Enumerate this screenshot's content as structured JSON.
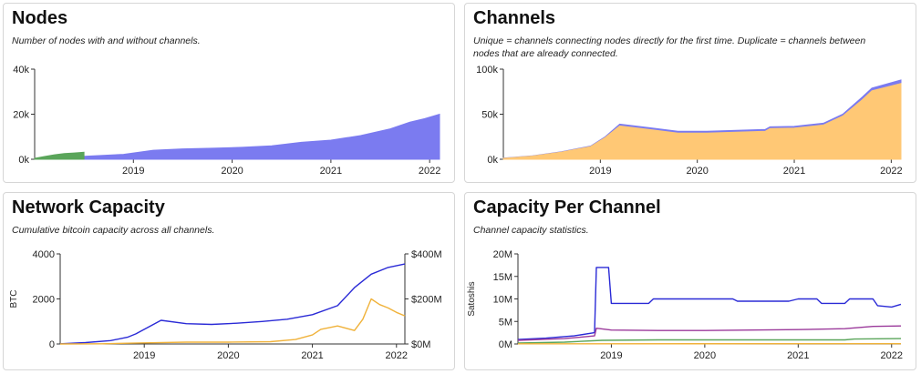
{
  "colors": {
    "blue": "#7b7bf0",
    "blue_line": "#2a2ad6",
    "green": "#5aa55a",
    "orange": "#ffc875",
    "orange_line": "#f0b23a",
    "purple": "#9b3a9b"
  },
  "panels": {
    "nodes": {
      "title": "Nodes",
      "subtitle": "Number of nodes with and without channels."
    },
    "channels": {
      "title": "Channels",
      "subtitle_line1": "Unique = channels connecting nodes directly for the first time. Duplicate = channels between",
      "subtitle_line2": "nodes that are already connected."
    },
    "capacity": {
      "title": "Network Capacity",
      "subtitle": "Cumulative bitcoin capacity across all channels."
    },
    "per_channel": {
      "title": "Capacity Per Channel",
      "subtitle": "Channel capacity statistics."
    }
  },
  "chart_data": [
    {
      "id": "nodes",
      "type": "area",
      "x_ticks": [
        "2019",
        "2020",
        "2021",
        "2022"
      ],
      "y_ticks": [
        "0k",
        "20k",
        "40k"
      ],
      "ylim": [
        0,
        40000
      ],
      "xlim": [
        2018.0,
        2022.1
      ],
      "series": [
        {
          "color_key": "blue",
          "x": [
            2018.0,
            2018.3,
            2018.6,
            2018.9,
            2019.2,
            2019.5,
            2019.8,
            2020.1,
            2020.4,
            2020.7,
            2021.0,
            2021.3,
            2021.6,
            2021.8,
            2021.95,
            2022.1
          ],
          "values": [
            300,
            900,
            1500,
            2200,
            4000,
            4600,
            4900,
            5300,
            6000,
            7500,
            8500,
            10500,
            13500,
            16500,
            18000,
            20000
          ]
        },
        {
          "color_key": "green",
          "x": [
            2018.0,
            2018.1,
            2018.2,
            2018.3,
            2018.4,
            2018.5
          ],
          "values": [
            400,
            1200,
            2000,
            2500,
            2800,
            3100
          ]
        }
      ]
    },
    {
      "id": "channels",
      "type": "area",
      "x_ticks": [
        "2019",
        "2020",
        "2021",
        "2022"
      ],
      "y_ticks": [
        "0k",
        "50k",
        "100k"
      ],
      "ylim": [
        0,
        100000
      ],
      "xlim": [
        2018.0,
        2022.1
      ],
      "series": [
        {
          "color_key": "orange",
          "x": [
            2018.0,
            2018.3,
            2018.6,
            2018.9,
            2019.05,
            2019.2,
            2019.5,
            2019.8,
            2020.1,
            2020.4,
            2020.7,
            2020.75,
            2021.0,
            2021.3,
            2021.5,
            2021.7,
            2021.8,
            2022.1
          ],
          "values": [
            1000,
            3500,
            8000,
            14000,
            24000,
            37000,
            33000,
            29000,
            29000,
            30000,
            31000,
            34000,
            34500,
            38000,
            48000,
            66000,
            76000,
            84000
          ]
        },
        {
          "color_key": "blue",
          "x": [
            2018.0,
            2018.3,
            2018.6,
            2018.9,
            2019.05,
            2019.2,
            2019.5,
            2019.8,
            2020.1,
            2020.4,
            2020.7,
            2020.75,
            2021.0,
            2021.3,
            2021.5,
            2021.7,
            2021.8,
            2022.1
          ],
          "values": [
            1200,
            3800,
            8400,
            14600,
            25000,
            39000,
            35000,
            31000,
            31000,
            32000,
            33000,
            36000,
            36500,
            40000,
            50000,
            69000,
            79000,
            88000
          ]
        }
      ]
    },
    {
      "id": "capacity",
      "type": "line",
      "x_ticks": [
        "2019",
        "2020",
        "2021",
        "2022"
      ],
      "y_ticks": [
        "0",
        "2000",
        "4000"
      ],
      "y2_ticks": [
        "$0M",
        "$200M",
        "$400M"
      ],
      "ylabel": "BTC",
      "ylim": [
        0,
        4000
      ],
      "y2lim": [
        0,
        400
      ],
      "xlim": [
        2018.0,
        2022.1
      ],
      "series": [
        {
          "color_key": "blue_line",
          "axis": "left",
          "x": [
            2018.0,
            2018.3,
            2018.6,
            2018.8,
            2018.9,
            2019.2,
            2019.5,
            2019.8,
            2020.1,
            2020.4,
            2020.7,
            2021.0,
            2021.3,
            2021.5,
            2021.7,
            2021.9,
            2022.1
          ],
          "values": [
            10,
            60,
            150,
            300,
            450,
            1050,
            900,
            870,
            920,
            1000,
            1100,
            1300,
            1700,
            2500,
            3100,
            3400,
            3550
          ]
        },
        {
          "color_key": "orange_line",
          "axis": "right",
          "x": [
            2018.0,
            2018.5,
            2019.0,
            2019.5,
            2020.0,
            2020.5,
            2020.8,
            2021.0,
            2021.1,
            2021.3,
            2021.5,
            2021.6,
            2021.7,
            2021.8,
            2021.9,
            2022.0,
            2022.1
          ],
          "values": [
            0,
            1,
            5,
            8,
            8,
            10,
            20,
            40,
            65,
            80,
            60,
            110,
            200,
            175,
            160,
            140,
            125
          ]
        }
      ]
    },
    {
      "id": "per_channel",
      "type": "line",
      "x_ticks": [
        "2019",
        "2020",
        "2021",
        "2022"
      ],
      "y_ticks": [
        "0M",
        "5M",
        "10M",
        "15M",
        "20M"
      ],
      "ylabel": "Satoshis",
      "ylim": [
        0,
        20000000
      ],
      "xlim": [
        2018.0,
        2022.1
      ],
      "series": [
        {
          "color_key": "blue_line",
          "x": [
            2018.0,
            2018.3,
            2018.6,
            2018.82,
            2018.84,
            2018.97,
            2019.0,
            2019.4,
            2019.45,
            2020.3,
            2020.35,
            2020.9,
            2021.0,
            2021.2,
            2021.25,
            2021.5,
            2021.55,
            2021.8,
            2021.85,
            2022.0,
            2022.1
          ],
          "values": [
            1000000,
            1300000,
            1800000,
            2500000,
            17000000,
            17000000,
            9000000,
            9000000,
            10000000,
            10000000,
            9500000,
            9500000,
            10000000,
            10000000,
            9000000,
            9000000,
            10000000,
            10000000,
            8500000,
            8200000,
            8800000
          ]
        },
        {
          "color_key": "purple",
          "x": [
            2018.0,
            2018.5,
            2018.82,
            2018.84,
            2019.0,
            2019.5,
            2020.0,
            2020.5,
            2021.0,
            2021.5,
            2021.8,
            2022.1
          ],
          "values": [
            800000,
            1200000,
            1800000,
            3500000,
            3100000,
            3000000,
            3000000,
            3100000,
            3200000,
            3400000,
            3900000,
            4000000
          ]
        },
        {
          "color_key": "green",
          "x": [
            2018.0,
            2018.5,
            2018.9,
            2019.5,
            2020.0,
            2020.5,
            2021.0,
            2021.5,
            2021.6,
            2022.1
          ],
          "values": [
            200000,
            400000,
            800000,
            900000,
            900000,
            900000,
            900000,
            900000,
            1100000,
            1200000
          ]
        },
        {
          "color_key": "orange_line",
          "x": [
            2018.0,
            2022.1
          ],
          "values": [
            50000,
            60000
          ]
        }
      ]
    }
  ]
}
